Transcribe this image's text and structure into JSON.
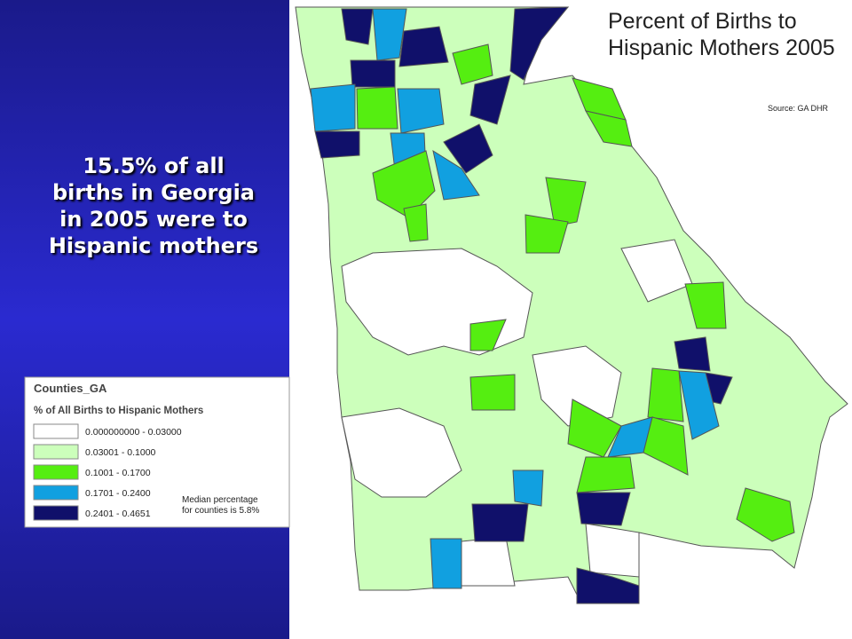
{
  "slide": {
    "headline_lines": [
      "15.5% of all",
      "births in Georgia",
      "in 2005 were to",
      "Hispanic mothers"
    ]
  },
  "map": {
    "title_lines": [
      "Percent of Births to",
      "Hispanic Mothers 2005"
    ],
    "source": "Source: GA DHR"
  },
  "legend": {
    "title": "Counties_GA",
    "subtitle": "% of All Births to Hispanic Mothers",
    "items": [
      {
        "label": "0.000000000 - 0.03000",
        "color": "#ffffff"
      },
      {
        "label": "0.03001 - 0.1000",
        "color": "#ccffbb"
      },
      {
        "label": "0.1001 - 0.1700",
        "color": "#55ee11"
      },
      {
        "label": "0.1701 - 0.2400",
        "color": "#11a0e0"
      },
      {
        "label": "0.2401 - 0.4651",
        "color": "#10106a"
      }
    ],
    "note_lines": [
      "Median percentage",
      "for counties is 5.8%"
    ]
  }
}
